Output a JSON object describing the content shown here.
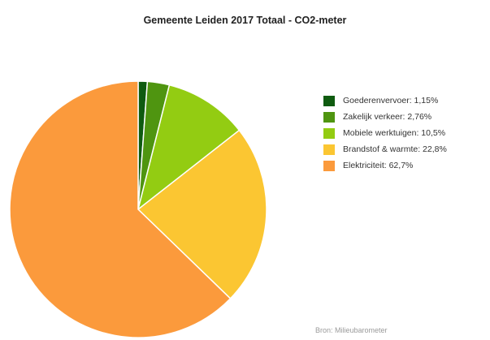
{
  "chart_data": {
    "type": "pie",
    "title": "Gemeente Leiden 2017 Totaal - CO2-meter",
    "slices": [
      {
        "label": "Goederenvervoer: 1,15%",
        "value": 1.15,
        "color": "#0f5b10"
      },
      {
        "label": "Zakelijk verkeer: 2,76%",
        "value": 2.76,
        "color": "#4f9510"
      },
      {
        "label": "Mobiele werktuigen: 10,5%",
        "value": 10.5,
        "color": "#93cc12"
      },
      {
        "label": "Brandstof & warmte: 22,8%",
        "value": 22.8,
        "color": "#fbc632"
      },
      {
        "label": "Elektriciteit: 62,7%",
        "value": 62.7,
        "color": "#fb9a3c"
      }
    ],
    "legend_position": "right",
    "source": "Bron: Milieubarometer"
  }
}
